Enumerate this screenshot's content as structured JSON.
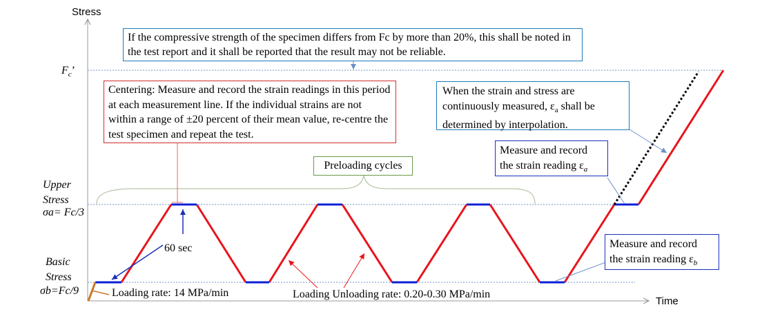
{
  "axes": {
    "y_title": "Stress",
    "x_title": "Time",
    "fc_label": "F",
    "fc_sub": "c",
    "fc_prime": "’",
    "upper_label_1": "Upper",
    "upper_label_2": "Stress",
    "upper_formula": "σa= Fc/3",
    "basic_label_1": "Basic",
    "basic_label_2": "Stress",
    "basic_formula": "σb=Fc/9"
  },
  "notes": {
    "top_note": "If the compressive strength of the specimen differs from Fc by more than 20%, this shall be noted in the test report and it shall be reported that the result may not be reliable.",
    "centering_note": "Centering: Measure and record the strain readings in this period at each measurement line. If the individual strains are not within a range of ±20 percent of their mean value, re-centre the test specimen and repeat the test.",
    "interp_note_line1": "When the strain and stress are",
    "interp_note_line2a": "continuously measured, ε",
    "interp_note_line2sub": "a",
    "interp_note_line2b": " shall be",
    "interp_note_line3": "determined by interpolation.",
    "measure_a_line1": "Measure and record",
    "measure_a_line2": "the strain reading ε",
    "measure_a_sub": "a",
    "measure_b_line1": "Measure and record",
    "measure_b_line2": "the strain reading ε",
    "measure_b_sub": "b",
    "preloading": "Preloading cycles",
    "hold_time": "60 sec",
    "loading_rate": "Loading rate: 14 MPa/min",
    "unloading_rate": "Loading Unloading rate: 0.20-0.30 MPa/min"
  },
  "colors": {
    "ramp": "#e8141c",
    "hold": "#0a1fd6",
    "initial_ramp": "#c8782a",
    "red_box": "#d42a2a",
    "blue_box": "#1f7ab8",
    "dark_blue_box": "#1a2fb8",
    "green_box": "#6a9a4a",
    "guide": "#6b8fc9"
  }
}
